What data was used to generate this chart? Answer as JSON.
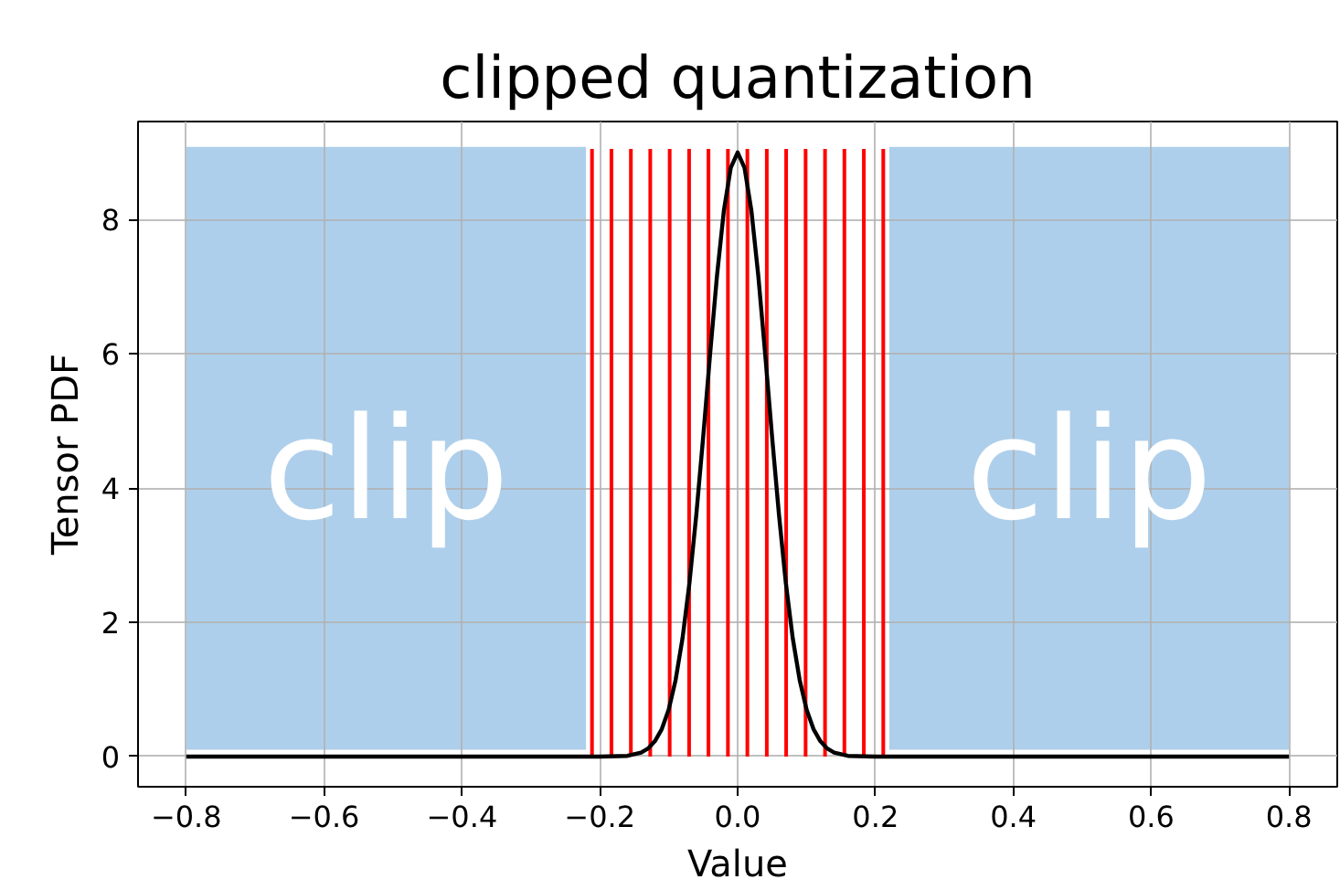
{
  "chart_data": {
    "type": "line",
    "title": "clipped quantization",
    "xlabel": "Value",
    "ylabel": "Tensor PDF",
    "x": [
      -0.8,
      -0.2,
      -0.16,
      -0.14,
      -0.13,
      -0.12,
      -0.11,
      -0.1,
      -0.09,
      -0.08,
      -0.07,
      -0.06,
      -0.05,
      -0.04,
      -0.03,
      -0.02,
      -0.01,
      0,
      0.01,
      0.02,
      0.03,
      0.04,
      0.05,
      0.06,
      0.07,
      0.08,
      0.09,
      0.1,
      0.11,
      0.12,
      0.13,
      0.14,
      0.16,
      0.2,
      0.8
    ],
    "series": [
      {
        "color": "#000000",
        "values": [
          0,
          0,
          0.01,
          0.06,
          0.12,
          0.23,
          0.41,
          0.7,
          1.14,
          1.76,
          2.58,
          3.6,
          4.76,
          5.99,
          7.16,
          8.13,
          8.77,
          9.0,
          8.77,
          8.13,
          7.16,
          5.99,
          4.76,
          3.6,
          2.58,
          1.76,
          1.14,
          0.7,
          0.41,
          0.23,
          0.12,
          0.06,
          0.01,
          0,
          0
        ]
      }
    ],
    "bands": [
      {
        "axis": "x",
        "from": -0.8,
        "to": -0.22,
        "label": "clip",
        "color": "#aecfeb"
      },
      {
        "axis": "x",
        "from": 0.22,
        "to": 0.8,
        "label": "clip",
        "color": "#aecfeb"
      }
    ],
    "ref_lines": [
      {
        "axis": "x",
        "value": -0.2113,
        "color": "#ff0000"
      },
      {
        "axis": "x",
        "value": -0.1831,
        "color": "#ff0000"
      },
      {
        "axis": "x",
        "value": -0.1549,
        "color": "#ff0000"
      },
      {
        "axis": "x",
        "value": -0.1268,
        "color": "#ff0000"
      },
      {
        "axis": "x",
        "value": -0.0986,
        "color": "#ff0000"
      },
      {
        "axis": "x",
        "value": -0.0704,
        "color": "#ff0000"
      },
      {
        "axis": "x",
        "value": -0.0423,
        "color": "#ff0000"
      },
      {
        "axis": "x",
        "value": -0.0141,
        "color": "#ff0000"
      },
      {
        "axis": "x",
        "value": 0.0141,
        "color": "#ff0000"
      },
      {
        "axis": "x",
        "value": 0.0423,
        "color": "#ff0000"
      },
      {
        "axis": "x",
        "value": 0.0704,
        "color": "#ff0000"
      },
      {
        "axis": "x",
        "value": 0.0986,
        "color": "#ff0000"
      },
      {
        "axis": "x",
        "value": 0.1268,
        "color": "#ff0000"
      },
      {
        "axis": "x",
        "value": 0.1549,
        "color": "#ff0000"
      },
      {
        "axis": "x",
        "value": 0.1831,
        "color": "#ff0000"
      },
      {
        "axis": "x",
        "value": 0.2113,
        "color": "#ff0000"
      }
    ],
    "xlim": [
      -0.87,
      0.87
    ],
    "ylim": [
      -0.45,
      9.46
    ],
    "xticks": [
      {
        "value": -0.8,
        "label": "−0.8"
      },
      {
        "value": -0.6,
        "label": "−0.6"
      },
      {
        "value": -0.4,
        "label": "−0.4"
      },
      {
        "value": -0.2,
        "label": "−0.2"
      },
      {
        "value": 0,
        "label": "0.0"
      },
      {
        "value": 0.2,
        "label": "0.2"
      },
      {
        "value": 0.4,
        "label": "0.4"
      },
      {
        "value": 0.6,
        "label": "0.6"
      },
      {
        "value": 0.8,
        "label": "0.8"
      }
    ],
    "yticks": [
      0,
      2,
      4,
      6,
      8
    ],
    "grid": true,
    "line_style": "solid",
    "marker": "none"
  }
}
